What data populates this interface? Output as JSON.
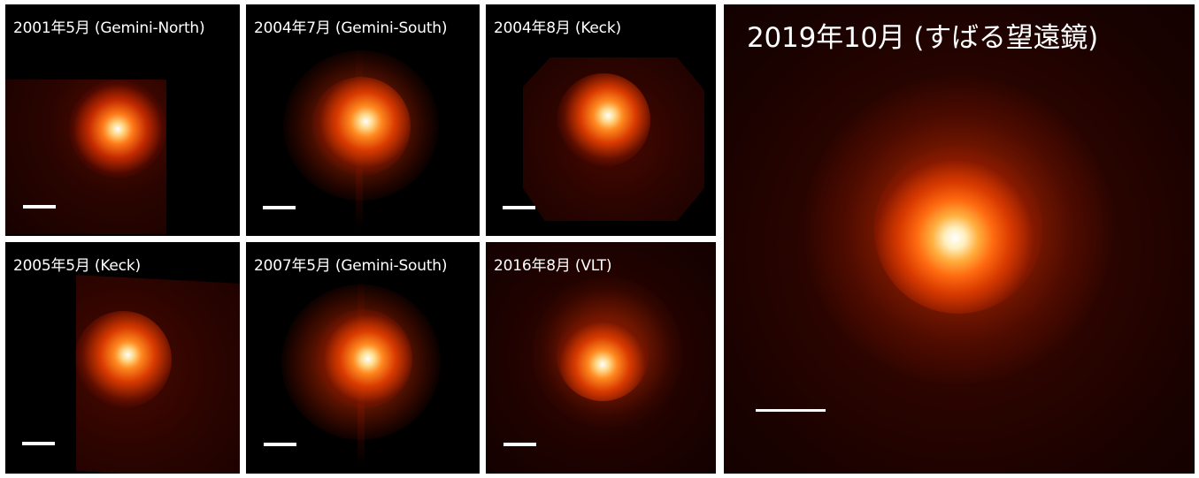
{
  "panels": [
    {
      "label": "2001年5月 (Gemini-North)"
    },
    {
      "label": "2004年7月 (Gemini-South)"
    },
    {
      "label": "2004年8月 (Keck)"
    },
    {
      "label": "2005年5月 (Keck)"
    },
    {
      "label": "2007年5月 (Gemini-South)"
    },
    {
      "label": "2016年8月 (VLT)"
    },
    {
      "label": "2019年10月 (すばる望遠鏡)"
    }
  ]
}
